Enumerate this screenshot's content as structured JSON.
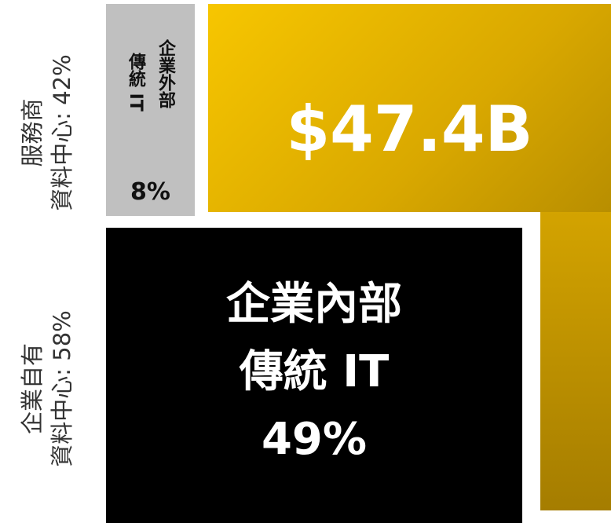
{
  "left_labels": [
    {
      "lines": [
        "服務商",
        "資料中心: 42%"
      ]
    },
    {
      "lines": [
        "企業自有",
        "資料中心: 58%"
      ]
    }
  ],
  "external": {
    "title": "企業外部",
    "subtitle": "傳統 IT",
    "share": "8%"
  },
  "total": "$47.4B",
  "internal": {
    "lines": [
      "企業內部",
      "傳統 IT",
      "49%"
    ]
  }
}
